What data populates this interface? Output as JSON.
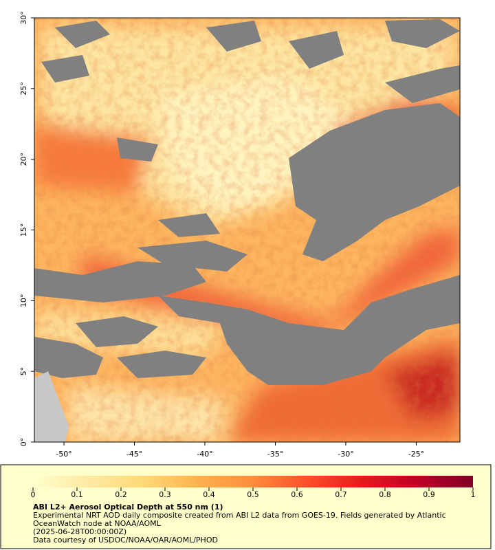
{
  "chart_data": {
    "type": "map",
    "xlim": [
      -52.1,
      -21.9
    ],
    "ylim": [
      0,
      30
    ],
    "xticks": [
      {
        "value": -50,
        "label": "-50°"
      },
      {
        "value": -45,
        "label": "-45°"
      },
      {
        "value": -40,
        "label": "-40°"
      },
      {
        "value": -35,
        "label": "-35°"
      },
      {
        "value": -30,
        "label": "-30°"
      },
      {
        "value": -25,
        "label": "-25°"
      }
    ],
    "yticks": [
      {
        "value": 0,
        "label": "0°"
      },
      {
        "value": 5,
        "label": "5°"
      },
      {
        "value": 10,
        "label": "10°"
      },
      {
        "value": 15,
        "label": "15°"
      },
      {
        "value": 20,
        "label": "20°"
      },
      {
        "value": 25,
        "label": "25°"
      },
      {
        "value": 30,
        "label": "30°"
      }
    ],
    "colorbar": {
      "lim": [
        0,
        1
      ],
      "ticks": [
        0,
        0.1,
        0.2,
        0.3,
        0.4,
        0.5,
        0.6,
        0.7,
        0.8,
        0.9,
        1
      ],
      "colors": [
        "#ffffcc",
        "#fee9a3",
        "#fed976",
        "#feb24c",
        "#fd8d3c",
        "#fc4e2a",
        "#e31a1c",
        "#bd0026",
        "#800026"
      ]
    },
    "title": "ABI L2+ Aerosol Optical Depth at 550 nm (1)",
    "description": "Experimental NRT AOD daily composite created from ABI L2 data from GOES-19. Fields generated by Atlantic OceanWatch node at NOAA/AOML",
    "date": "(2025-06-28T00:00:00Z)",
    "credit": "Data courtesy of USDOC/NOAA/OAR/AOML/PHOD"
  }
}
